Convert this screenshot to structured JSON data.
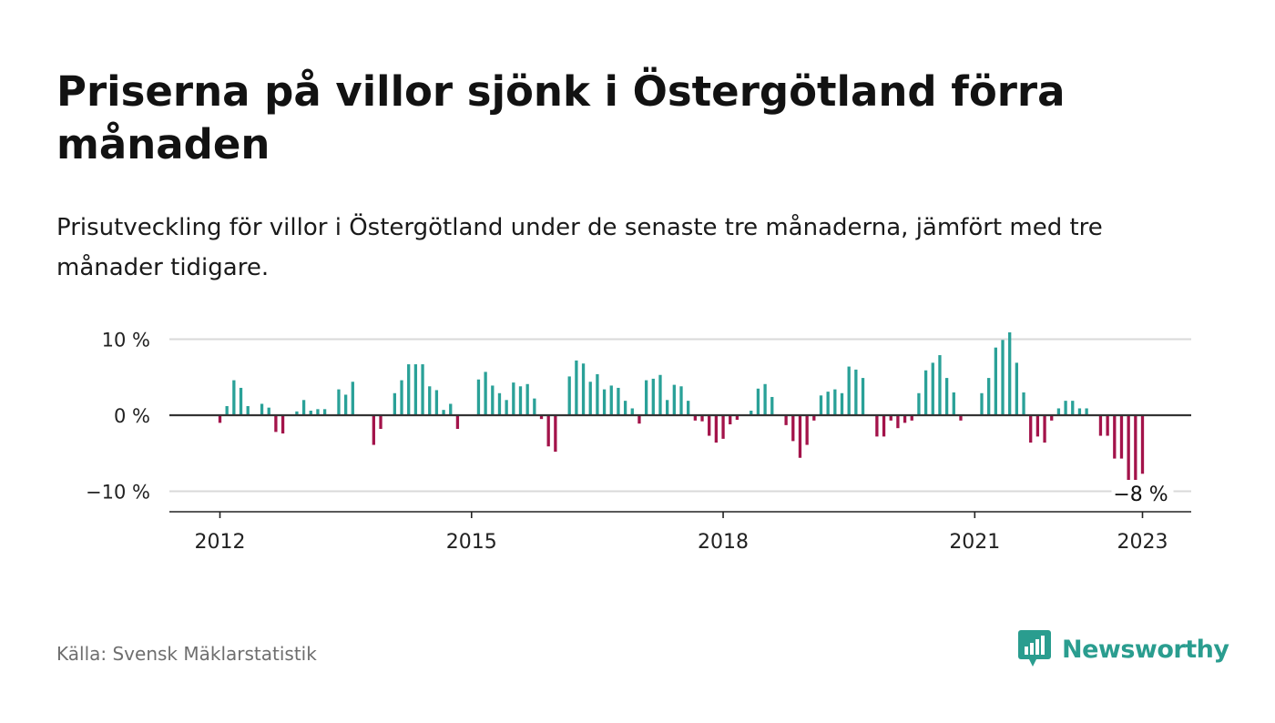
{
  "title": "Priserna på villor sjönk i Östergötland förra månaden",
  "subtitle": "Prisutveckling för villor i Östergötland under de senaste tre månaderna, jämfört med tre månader tidigare.",
  "source": "Källa: Svensk Mäklarstatistik",
  "brand": {
    "name": "Newsworthy",
    "icon": "newsworthy-logo-icon",
    "color": "#2a9d8f"
  },
  "colors": {
    "positive": "#2aa198",
    "negative": "#a3134a",
    "grid": "#d9d9d9",
    "zero": "#333333"
  },
  "chart_data": {
    "type": "bar",
    "x_start": "2012-01",
    "x_end": "2023-01",
    "ylim": [
      -12,
      11
    ],
    "y_ticks": [
      {
        "value": 10,
        "label": "10 %"
      },
      {
        "value": 0,
        "label": "0 %"
      },
      {
        "value": -10,
        "label": "−10 %"
      }
    ],
    "x_ticks": [
      {
        "date": "2012-01",
        "label": "2012"
      },
      {
        "date": "2015-01",
        "label": "2015"
      },
      {
        "date": "2018-01",
        "label": "2018"
      },
      {
        "date": "2021-01",
        "label": "2021"
      },
      {
        "date": "2023-01",
        "label": "2023"
      }
    ],
    "grid": true,
    "last_value_label": "−8 %",
    "series": [
      {
        "values": [
          -1.0,
          1.2,
          4.6,
          3.6,
          1.2,
          0.0,
          1.5,
          1.0,
          -2.2,
          -2.4,
          0.0,
          0.5,
          2.0,
          0.6,
          0.8,
          0.8,
          0.0,
          3.4,
          2.7,
          4.4,
          0.0,
          0.0,
          -3.9,
          -1.8,
          0.0,
          2.9,
          4.6,
          6.7,
          6.7,
          6.7,
          3.8,
          3.3,
          0.7,
          1.5,
          -1.8,
          0.0,
          0.0,
          4.7,
          5.7,
          3.9,
          2.9,
          2.0,
          4.3,
          3.8,
          4.1,
          2.2,
          -0.5,
          -4.1,
          -4.8,
          0.0,
          5.1,
          7.2,
          6.8,
          4.4,
          5.4,
          3.4,
          3.9,
          3.6,
          1.9,
          0.9,
          -1.1,
          4.6,
          4.8,
          5.3,
          2.0,
          4.0,
          3.8,
          1.9,
          -0.7,
          -0.8,
          -2.7,
          -3.6,
          -3.1,
          -1.2,
          -0.6,
          0.0,
          0.6,
          3.5,
          4.1,
          2.4,
          0.0,
          -1.3,
          -3.4,
          -5.6,
          -3.9,
          -0.7,
          2.6,
          3.1,
          3.4,
          2.9,
          6.4,
          6.0,
          4.9,
          0.0,
          -2.8,
          -2.8,
          -0.7,
          -1.7,
          -1.0,
          -0.7,
          2.9,
          5.9,
          6.9,
          7.9,
          4.9,
          3.0,
          -0.7,
          0.0,
          0.0,
          2.9,
          4.9,
          8.9,
          9.9,
          10.9,
          6.9,
          3.0,
          -3.6,
          -2.8,
          -3.6,
          -0.7,
          0.9,
          1.9,
          1.9,
          0.9,
          0.9,
          0.0,
          -2.7,
          -2.7,
          -5.7,
          -5.7,
          -9.0,
          -8.6,
          -7.7
        ]
      }
    ]
  }
}
